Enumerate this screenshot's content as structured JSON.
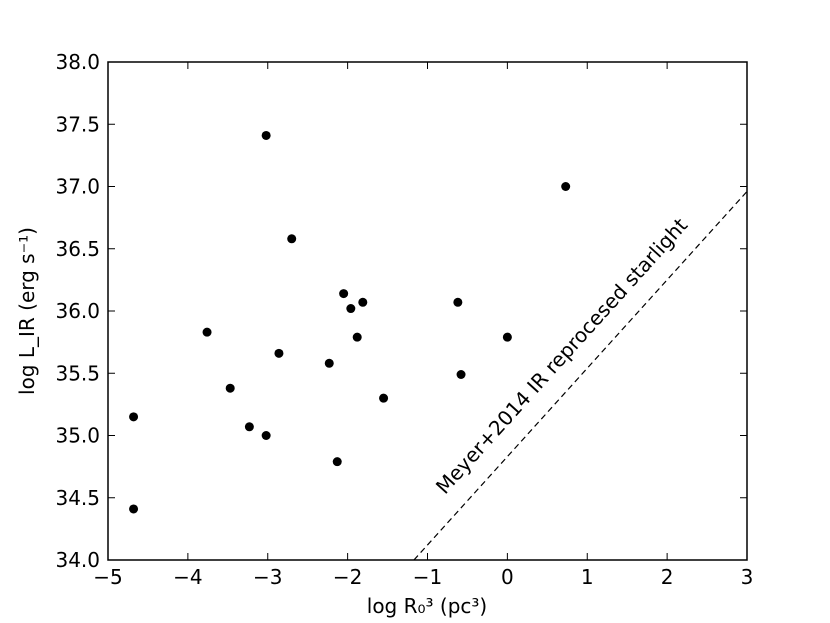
{
  "chart_data": {
    "type": "scatter",
    "xlabel": "log R₀³ (pc³)",
    "ylabel": "log L_IR (erg s⁻¹)",
    "xlim": [
      -5,
      3
    ],
    "ylim": [
      34.0,
      38.0
    ],
    "xticks": [
      -5,
      -4,
      -3,
      -2,
      -1,
      0,
      1,
      2,
      3
    ],
    "yticks": [
      34.0,
      34.5,
      35.0,
      35.5,
      36.0,
      36.5,
      37.0,
      37.5,
      38.0
    ],
    "xtick_labels": [
      "−5",
      "−4",
      "−3",
      "−2",
      "−1",
      "0",
      "1",
      "2",
      "3"
    ],
    "ytick_labels": [
      "34.0",
      "34.5",
      "35.0",
      "35.5",
      "36.0",
      "36.5",
      "37.0",
      "37.5",
      "38.0"
    ],
    "grid": false,
    "marker_color": "#000000",
    "points": [
      {
        "x": -4.68,
        "y": 35.15
      },
      {
        "x": -4.68,
        "y": 34.41
      },
      {
        "x": -3.76,
        "y": 35.83
      },
      {
        "x": -3.47,
        "y": 35.38
      },
      {
        "x": -3.23,
        "y": 35.07
      },
      {
        "x": -3.02,
        "y": 37.41
      },
      {
        "x": -3.02,
        "y": 35.0
      },
      {
        "x": -2.86,
        "y": 35.66
      },
      {
        "x": -2.7,
        "y": 36.58
      },
      {
        "x": -2.23,
        "y": 35.58
      },
      {
        "x": -2.13,
        "y": 34.79
      },
      {
        "x": -2.05,
        "y": 36.14
      },
      {
        "x": -1.96,
        "y": 36.02
      },
      {
        "x": -1.88,
        "y": 35.79
      },
      {
        "x": -1.81,
        "y": 36.07
      },
      {
        "x": -1.55,
        "y": 35.3
      },
      {
        "x": -0.62,
        "y": 36.07
      },
      {
        "x": -0.58,
        "y": 35.49
      },
      {
        "x": 0.0,
        "y": 35.79
      },
      {
        "x": 0.73,
        "y": 37.0
      }
    ],
    "reference_line": {
      "label": "Meyer+2014 IR reprocesed starlight",
      "style": "dashed",
      "x": [
        -1.17,
        3.0
      ],
      "y": [
        34.0,
        36.96
      ]
    }
  }
}
